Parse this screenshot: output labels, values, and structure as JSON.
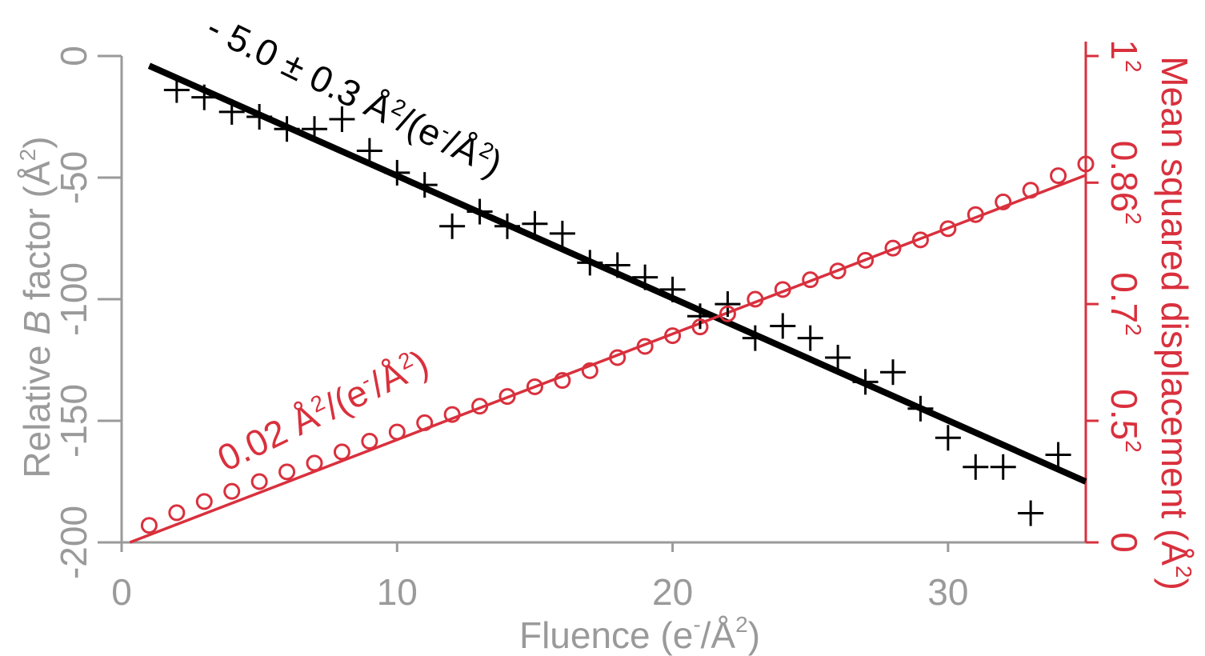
{
  "chart_data": {
    "type": "scatter",
    "colors": {
      "axis_gray": "#9a9a9a",
      "b_factor": "#000000",
      "msd": "#d9303d"
    },
    "x": {
      "label_main": "Fluence (e",
      "label_sup1": "-",
      "label_mid": "/Å",
      "label_sup2": "2",
      "label_end": ")",
      "range": [
        0,
        35
      ],
      "ticks": [
        0,
        10,
        20,
        30
      ],
      "tick_labels": [
        "0",
        "10",
        "20",
        "30"
      ]
    },
    "y_left": {
      "label_a": "Relative ",
      "label_b": "B",
      "label_c": " factor (Å",
      "label_sup": "2",
      "label_end": ")",
      "range": [
        -200,
        0
      ],
      "ticks": [
        0,
        -50,
        -100,
        -150,
        -200
      ],
      "tick_labels": [
        "0",
        "-50",
        "-100",
        "-150",
        "-200"
      ]
    },
    "y_right": {
      "label_main": "Mean squared displacement (Å",
      "label_sup": "2",
      "label_end": ")",
      "range": [
        0,
        1
      ],
      "ticks": [
        0,
        0.25,
        0.49,
        0.7396,
        1
      ],
      "tick_labels": [
        "0",
        "0.5",
        "0.7",
        "0.86",
        "1"
      ],
      "tick_label_sups": [
        "",
        "2",
        "2",
        "2",
        "2"
      ]
    },
    "series": [
      {
        "axis": "left",
        "marker": "plus",
        "color": "#000000",
        "x": [
          2,
          3,
          4,
          5,
          6,
          7,
          8,
          9,
          10,
          11,
          12,
          13,
          14,
          15,
          16,
          17,
          18,
          19,
          20,
          21,
          22,
          23,
          24,
          25,
          26,
          27,
          28,
          29,
          30,
          31,
          32,
          33,
          34
        ],
        "y": [
          -14,
          -17,
          -23,
          -25,
          -30,
          -30,
          -26,
          -39,
          -48,
          -53,
          -70,
          -64,
          -70,
          -69,
          -73,
          -85,
          -86,
          -91,
          -96,
          -107,
          -102,
          -116,
          -111,
          -116,
          -124,
          -134,
          -130,
          -145,
          -157,
          -169,
          -169,
          -188,
          -164
        ],
        "fit": {
          "x": [
            1,
            35
          ],
          "y": [
            -4,
            -175
          ]
        }
      },
      {
        "axis": "right",
        "marker": "circle",
        "color": "#d9303d",
        "x": [
          1,
          2,
          3,
          4,
          5,
          6,
          7,
          8,
          9,
          10,
          11,
          12,
          13,
          14,
          15,
          16,
          17,
          18,
          19,
          20,
          21,
          22,
          23,
          24,
          25,
          26,
          27,
          28,
          29,
          30,
          31,
          32,
          33,
          34,
          35
        ],
        "y": [
          0.035,
          0.061,
          0.084,
          0.105,
          0.125,
          0.145,
          0.163,
          0.186,
          0.208,
          0.227,
          0.246,
          0.263,
          0.28,
          0.3,
          0.32,
          0.333,
          0.353,
          0.38,
          0.403,
          0.425,
          0.443,
          0.47,
          0.5,
          0.52,
          0.54,
          0.558,
          0.58,
          0.605,
          0.622,
          0.645,
          0.674,
          0.7,
          0.724,
          0.754,
          0.778
        ],
        "fit": {
          "x": [
            0.3,
            35
          ],
          "y": [
            0,
            0.755
          ]
        }
      }
    ],
    "annotations": [
      {
        "id": "b-slope",
        "text_a": "- 5.0 ± 0.3 Å",
        "sup_a": "2",
        "text_b": "/(e",
        "sup_b": "-",
        "text_c": "/Å",
        "sup_c": "2",
        "text_d": ")",
        "color": "#000000"
      },
      {
        "id": "msd-slope",
        "text_a": "0.02 Å",
        "sup_a": "2",
        "text_b": "/(e",
        "sup_b": "-",
        "text_c": "/Å",
        "sup_c": "2",
        "text_d": ")",
        "color": "#d9303d"
      }
    ]
  }
}
